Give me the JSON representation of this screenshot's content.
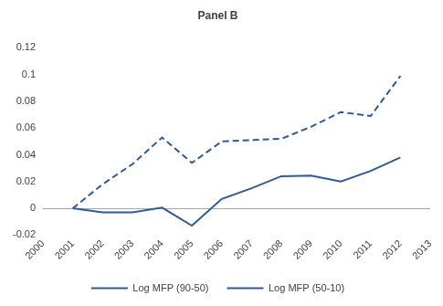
{
  "chart_data": {
    "type": "line",
    "title": "Panel B",
    "x": [
      2001,
      2002,
      2003,
      2004,
      2005,
      2006,
      2007,
      2008,
      2009,
      2010,
      2011,
      2012
    ],
    "series": [
      {
        "name": "Log MFP (90-50)",
        "color": "#2e5a9c",
        "line_style": "solid",
        "values": [
          0,
          -0.003,
          -0.003,
          0.0005,
          -0.013,
          0.007,
          0.015,
          0.024,
          0.0245,
          0.02,
          0.028,
          0.038
        ]
      },
      {
        "name": "Log MFP (50-10)",
        "color": "#2e5a9c",
        "line_style": "dashed",
        "values": [
          0,
          0.018,
          0.033,
          0.053,
          0.034,
          0.05,
          0.051,
          0.052,
          0.061,
          0.072,
          0.069,
          0.099
        ]
      }
    ],
    "xlim": [
      2000,
      2013
    ],
    "xticks": [
      2000,
      2001,
      2002,
      2003,
      2004,
      2005,
      2006,
      2007,
      2008,
      2009,
      2010,
      2011,
      2012,
      2013
    ],
    "ylim": [
      -0.02,
      0.12
    ],
    "yticks": [
      -0.02,
      0,
      0.02,
      0.04,
      0.06,
      0.08,
      0.1,
      0.12
    ],
    "grid": false,
    "legend": "bottom"
  }
}
